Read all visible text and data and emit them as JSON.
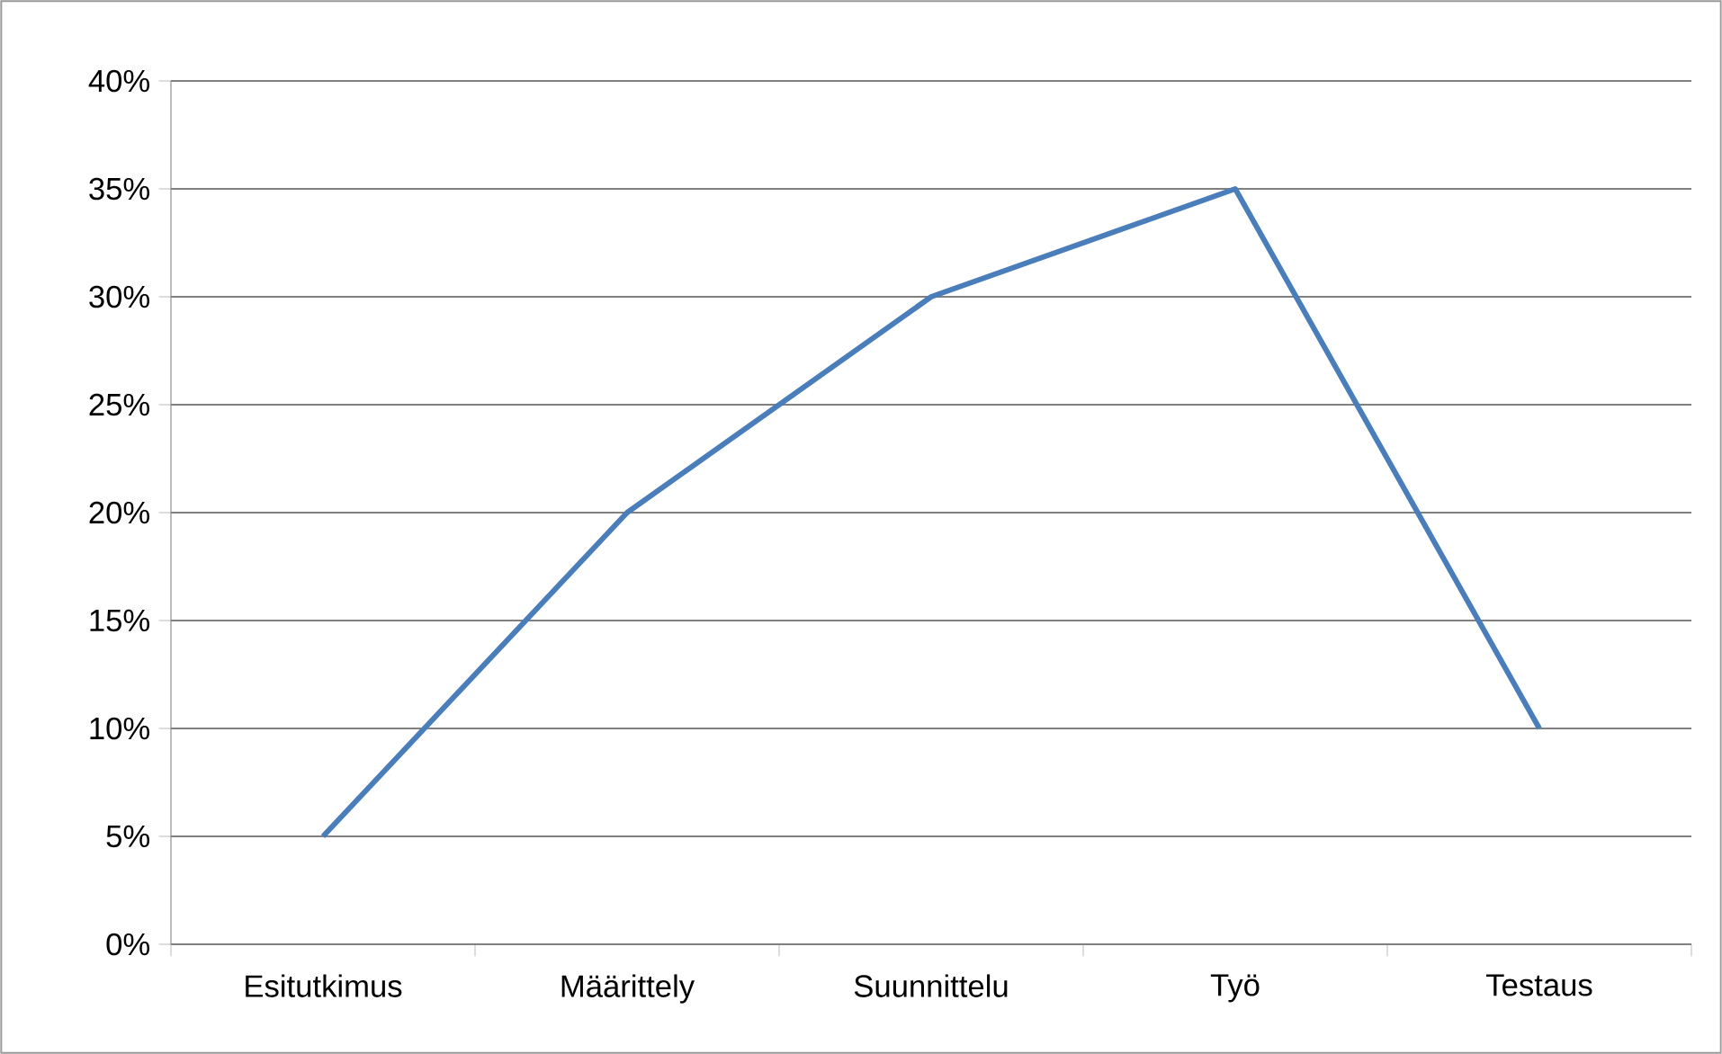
{
  "chart_data": {
    "type": "line",
    "categories": [
      "Esitutkimus",
      "Määrittely",
      "Suunnittelu",
      "Työ",
      "Testaus"
    ],
    "series": [
      {
        "color": "#4a7ebb",
        "values": [
          5,
          20,
          30,
          35,
          10
        ]
      }
    ],
    "ylim": [
      0,
      40
    ],
    "yticks": [
      {
        "value": 0,
        "label": "0%"
      },
      {
        "value": 5,
        "label": "5%"
      },
      {
        "value": 10,
        "label": "10%"
      },
      {
        "value": 15,
        "label": "15%"
      },
      {
        "value": 20,
        "label": "20%"
      },
      {
        "value": 25,
        "label": "25%"
      },
      {
        "value": 30,
        "label": "30%"
      },
      {
        "value": 35,
        "label": "35%"
      },
      {
        "value": 40,
        "label": "40%"
      }
    ],
    "grid": "y",
    "marker": "none",
    "line_style": "solid"
  }
}
